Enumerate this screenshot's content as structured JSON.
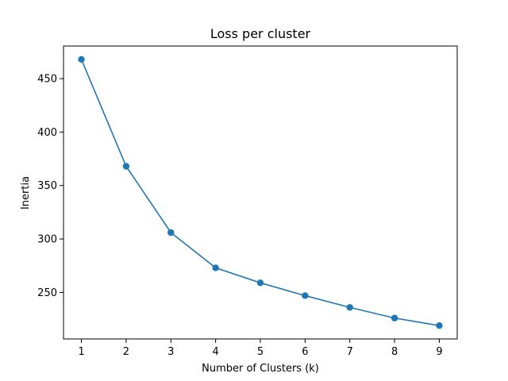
{
  "chart_data": {
    "type": "line",
    "title": "Loss per cluster",
    "xlabel": "Number of Clusters (k)",
    "ylabel": "Inertia",
    "x": [
      1,
      2,
      3,
      4,
      5,
      6,
      7,
      8,
      9
    ],
    "series": [
      {
        "values": [
          468,
          368,
          306,
          273,
          259,
          247,
          236,
          226,
          219
        ],
        "color": "#1f77b4",
        "marker": "circle"
      }
    ],
    "xlim": [
      0.6,
      9.4
    ],
    "ylim": [
      206.5,
      480.5
    ],
    "xticks": [
      1,
      2,
      3,
      4,
      5,
      6,
      7,
      8,
      9
    ],
    "yticks": [
      250,
      300,
      350,
      400,
      450
    ],
    "grid": false,
    "legend": "none"
  }
}
